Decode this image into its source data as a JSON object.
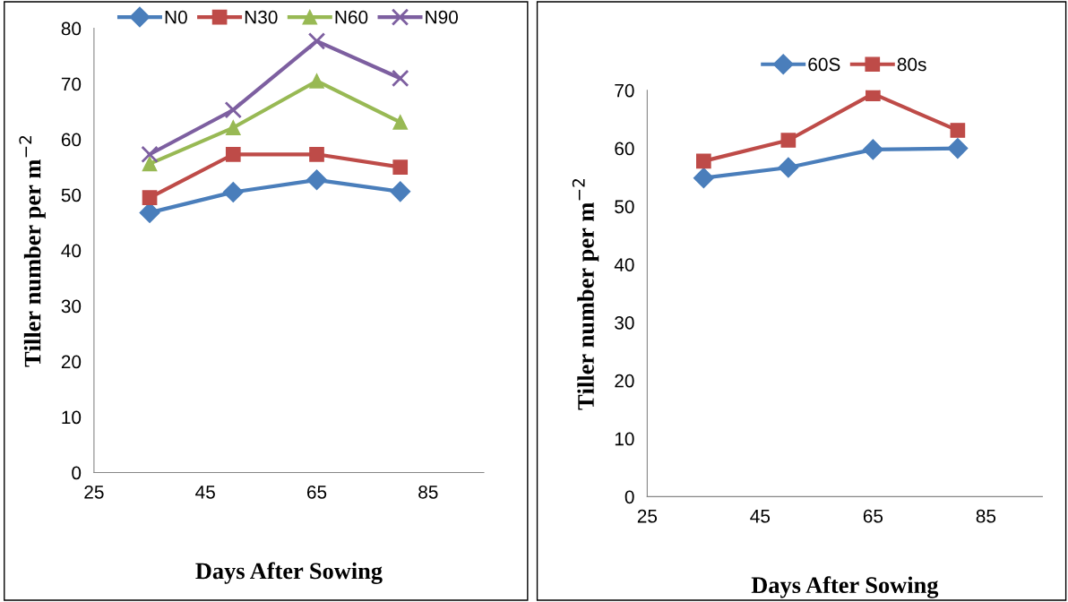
{
  "chart_data": [
    {
      "type": "line",
      "xlabel": "Days After Sowing",
      "ylabel": "Tiller number per m$^{−2}$",
      "xlim": [
        25,
        95
      ],
      "xticks": [
        25,
        45,
        65,
        85
      ],
      "ylim": [
        0,
        80
      ],
      "yticks": [
        0,
        10,
        20,
        30,
        40,
        50,
        60,
        70,
        80
      ],
      "grid": false,
      "legend": "top",
      "x": [
        35,
        50,
        65,
        80
      ],
      "series": [
        {
          "name": "N0",
          "color": "#4a7ebb",
          "marker": "diamond",
          "values": [
            46.8,
            50.5,
            52.7,
            50.6
          ]
        },
        {
          "name": "N30",
          "color": "#be4b48",
          "marker": "square",
          "values": [
            49.5,
            57.3,
            57.3,
            55.0
          ]
        },
        {
          "name": "N60",
          "color": "#98b954",
          "marker": "triangle",
          "values": [
            55.6,
            62.1,
            70.5,
            63.1
          ]
        },
        {
          "name": "N90",
          "color": "#7d5fa0",
          "marker": "cross",
          "values": [
            57.3,
            65.3,
            77.7,
            71.0
          ]
        }
      ]
    },
    {
      "type": "line",
      "xlabel": "Days After Sowing",
      "ylabel": "Tiller number per m$^{−2}$",
      "xlim": [
        25,
        95
      ],
      "xticks": [
        25,
        45,
        65,
        85
      ],
      "ylim": [
        0,
        70
      ],
      "yticks": [
        0,
        10,
        20,
        30,
        40,
        50,
        60,
        70
      ],
      "grid": false,
      "legend": "top",
      "x": [
        35,
        50,
        65,
        80
      ],
      "series": [
        {
          "name": "60S",
          "color": "#4a7ebb",
          "marker": "diamond",
          "values": [
            54.9,
            56.7,
            59.8,
            60.0
          ]
        },
        {
          "name": "80s",
          "color": "#be4b48",
          "marker": "square",
          "values": [
            57.8,
            61.4,
            69.4,
            63.1
          ]
        }
      ]
    }
  ]
}
